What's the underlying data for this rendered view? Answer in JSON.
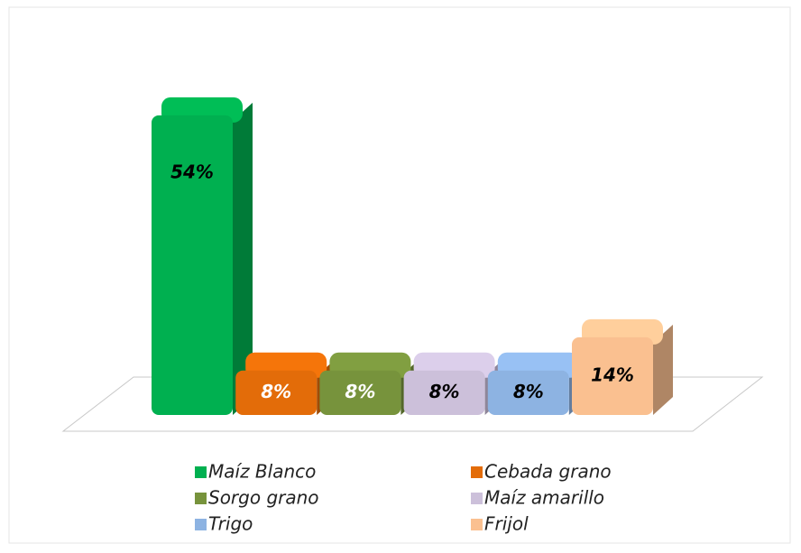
{
  "chart_data": {
    "type": "bar3d",
    "categories": [
      "Maíz Blanco",
      "Cebada grano",
      "Sorgo grano",
      "Maíz amarillo",
      "Trigo",
      "Frijol"
    ],
    "values": [
      54,
      8,
      8,
      8,
      8,
      14
    ],
    "value_labels": [
      "54%",
      "8%",
      "8%",
      "8%",
      "8%",
      "14%"
    ],
    "colors": [
      "#00b050",
      "#e36c09",
      "#77933c",
      "#ccc0da",
      "#8db3e2",
      "#fac090"
    ],
    "label_colors": [
      "#000000",
      "#ffffff",
      "#ffffff",
      "#000000",
      "#000000",
      "#000000"
    ],
    "legend": "bottom"
  }
}
